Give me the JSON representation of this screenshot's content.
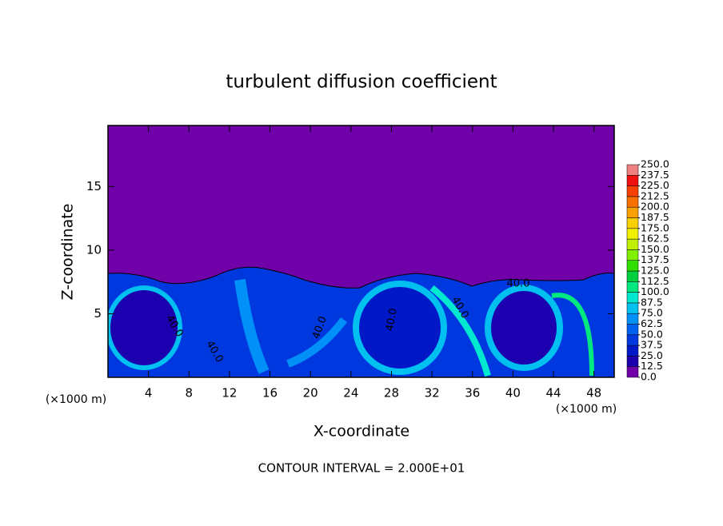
{
  "chart_data": {
    "type": "contour",
    "title": "turbulent diffusion coefficient",
    "x_label": "X-coordinate",
    "y_label": "Z-coordinate",
    "x_unit": "(×1000 m)",
    "xlim": [
      0,
      50
    ],
    "xticks": [
      4,
      8,
      12,
      16,
      20,
      24,
      28,
      32,
      36,
      40,
      44,
      48
    ],
    "ylim": [
      0,
      19.8
    ],
    "yticks": [
      5,
      10,
      15
    ],
    "footer": "CONTOUR INTERVAL = 2.000E+01",
    "contour_labels": [
      "40.0",
      "40.0",
      "40.0",
      "40.0",
      "40.0",
      "40.0"
    ],
    "colorbar": {
      "levels": [
        {
          "value": 0,
          "label": "0.0"
        },
        {
          "value": 12.5,
          "label": "12.5"
        },
        {
          "value": 25,
          "label": "25.0"
        },
        {
          "value": 37.5,
          "label": "37.5"
        },
        {
          "value": 50,
          "label": "50.0"
        },
        {
          "value": 62.5,
          "label": "62.5"
        },
        {
          "value": 75,
          "label": "75.0"
        },
        {
          "value": 87.5,
          "label": "87.5"
        },
        {
          "value": 100,
          "label": "100.0"
        },
        {
          "value": 112.5,
          "label": "112.5"
        },
        {
          "value": 125,
          "label": "125.0"
        },
        {
          "value": 137.5,
          "label": "137.5"
        },
        {
          "value": 150,
          "label": "150.0"
        },
        {
          "value": 162.5,
          "label": "162.5"
        },
        {
          "value": 175,
          "label": "175.0"
        },
        {
          "value": 187.5,
          "label": "187.5"
        },
        {
          "value": 200,
          "label": "200.0"
        },
        {
          "value": 212.5,
          "label": "212.5"
        },
        {
          "value": 225,
          "label": "225.0"
        },
        {
          "value": 237.5,
          "label": "237.5"
        },
        {
          "value": 250,
          "label": "250.0"
        }
      ],
      "colors": [
        "#7000a8",
        "#1c00b0",
        "#0018c8",
        "#0038e0",
        "#0060f0",
        "#0090f8",
        "#00c0f0",
        "#00e8d0",
        "#00e880",
        "#00d040",
        "#30e000",
        "#80f000",
        "#c0f000",
        "#f0f000",
        "#f8d000",
        "#f8a000",
        "#f87000",
        "#f84000",
        "#f01010",
        "#f08080"
      ]
    }
  }
}
